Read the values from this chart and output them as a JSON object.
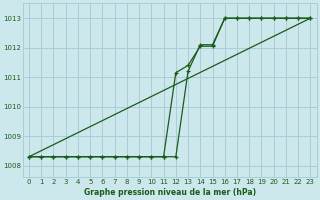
{
  "bg_color": "#cce8ed",
  "grid_color": "#aacdd5",
  "line_color": "#1a5c1a",
  "title": "Graphe pression niveau de la mer (hPa)",
  "xlim": [
    -0.5,
    23.5
  ],
  "ylim": [
    1007.6,
    1013.5
  ],
  "yticks": [
    1008,
    1009,
    1010,
    1011,
    1012,
    1013
  ],
  "xticks": [
    0,
    1,
    2,
    3,
    4,
    5,
    6,
    7,
    8,
    9,
    10,
    11,
    12,
    13,
    14,
    15,
    16,
    17,
    18,
    19,
    20,
    21,
    22,
    23
  ],
  "line1_x": [
    0,
    1,
    2,
    3,
    4,
    5,
    6,
    7,
    8,
    9,
    10,
    11,
    12,
    13,
    14,
    15,
    16,
    17,
    18,
    19,
    20,
    21,
    22,
    23
  ],
  "line1_y": [
    1008.3,
    1008.3,
    1008.3,
    1008.3,
    1008.3,
    1008.3,
    1008.3,
    1008.3,
    1008.3,
    1008.3,
    1008.3,
    1008.3,
    1011.15,
    1011.4,
    1012.05,
    1012.05,
    1013.0,
    1013.0,
    1013.0,
    1013.0,
    1013.0,
    1013.0,
    1013.0,
    1013.0
  ],
  "line2_x": [
    0,
    23
  ],
  "line2_y": [
    1008.3,
    1013.0
  ],
  "line3_x": [
    0,
    1,
    2,
    3,
    4,
    5,
    6,
    7,
    8,
    9,
    10,
    11,
    12,
    13,
    14,
    15,
    16,
    17,
    18,
    19,
    20,
    21,
    22,
    23
  ],
  "line3_y": [
    1008.3,
    1008.3,
    1008.3,
    1008.3,
    1008.3,
    1008.3,
    1008.3,
    1008.3,
    1008.3,
    1008.3,
    1008.3,
    1008.3,
    1008.3,
    1011.2,
    1012.1,
    1012.1,
    1013.0,
    1013.0,
    1013.0,
    1013.0,
    1013.0,
    1013.0,
    1013.0,
    1013.0
  ]
}
